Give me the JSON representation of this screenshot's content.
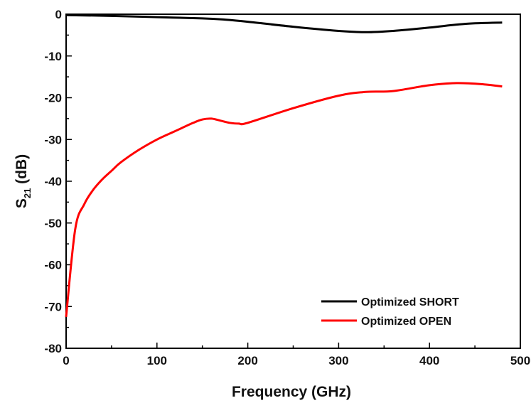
{
  "chart_data": {
    "type": "line",
    "xlabel": "Frequency (GHz)",
    "ylabel": {
      "base": "S",
      "sub": "21",
      "rest": " (dB)"
    },
    "xlim": [
      0,
      500
    ],
    "ylim": [
      -80,
      0
    ],
    "xticks": [
      0,
      100,
      200,
      300,
      400,
      500
    ],
    "yticks": [
      0,
      -10,
      -20,
      -30,
      -40,
      -50,
      -60,
      -70,
      -80
    ],
    "grid": false,
    "legend_position": "bottom-right",
    "series": [
      {
        "name": "Optimized SHORT",
        "color": "#000000",
        "x": [
          0,
          50,
          100,
          150,
          175,
          200,
          250,
          300,
          330,
          360,
          400,
          440,
          480
        ],
        "y": [
          -0.2,
          -0.4,
          -0.7,
          -1.0,
          -1.3,
          -1.8,
          -3.0,
          -4.0,
          -4.3,
          -4.0,
          -3.2,
          -2.3,
          -2.0
        ]
      },
      {
        "name": "Optimized OPEN",
        "color": "#ff0000",
        "x": [
          0,
          10,
          20,
          30,
          40,
          50,
          60,
          80,
          100,
          120,
          140,
          150,
          160,
          170,
          180,
          190,
          200,
          250,
          300,
          330,
          360,
          400,
          430,
          460,
          480
        ],
        "y": [
          -72.5,
          -51.5,
          -45.5,
          -42.0,
          -39.5,
          -37.5,
          -35.5,
          -32.5,
          -30.0,
          -28.0,
          -26.0,
          -25.2,
          -25.0,
          -25.5,
          -26.0,
          -26.2,
          -26.0,
          -22.5,
          -19.5,
          -18.6,
          -18.4,
          -17.0,
          -16.5,
          -16.8,
          -17.3
        ]
      }
    ]
  }
}
